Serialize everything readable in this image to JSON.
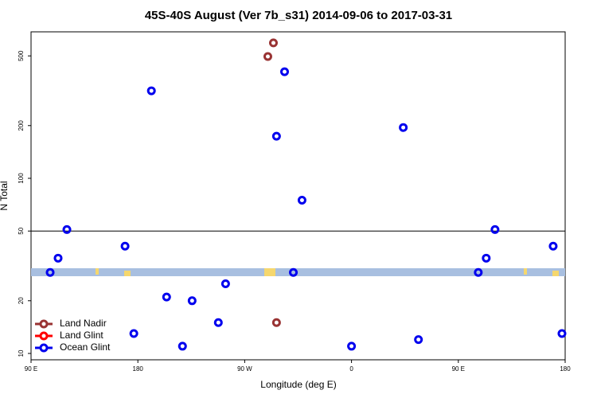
{
  "chart_data": {
    "type": "scatter",
    "title": "45S-40S August (Ver 7b_s31)   2014-09-06 to 2017-03-31",
    "x_label": "Longitude (deg E)",
    "y_label": "N Total",
    "log_y": true,
    "xlim": [
      90,
      540
    ],
    "ylim": [
      9.2,
      686
    ],
    "xticks": [
      {
        "value": 90,
        "label": "90 E"
      },
      {
        "value": 180,
        "label": "180"
      },
      {
        "value": 270,
        "label": "90 W"
      },
      {
        "value": 360,
        "label": "0"
      },
      {
        "value": 450,
        "label": "90 E"
      },
      {
        "value": 540,
        "label": "180"
      }
    ],
    "yticks": [
      10,
      20,
      50,
      100,
      200,
      500
    ],
    "hline": 50,
    "legend": "bottom-left",
    "series": [
      {
        "name": "Land Nadir",
        "color": "#993333",
        "x": [
          289.5,
          294.2,
          296.8
        ],
        "values": [
          496,
          593,
          15
        ]
      },
      {
        "name": "Land Glint",
        "color": "#ff0000",
        "x": [],
        "values": []
      },
      {
        "name": "Ocean Glint",
        "color": "#0000ee",
        "x": [
          106.1,
          112.8,
          120.2,
          169.2,
          176.6,
          191.4,
          204.2,
          217.6,
          225.7,
          247.8,
          253.9,
          296.8,
          303.6,
          311,
          318.3,
          360,
          403.6,
          416.4,
          466.8,
          473.5,
          480.9,
          529.9,
          537.3
        ],
        "values": [
          29,
          35,
          51,
          41,
          13,
          316,
          21,
          11,
          20,
          15,
          25,
          174,
          406,
          29,
          75,
          11,
          195,
          12,
          29,
          35,
          51,
          41,
          13
        ]
      }
    ]
  }
}
